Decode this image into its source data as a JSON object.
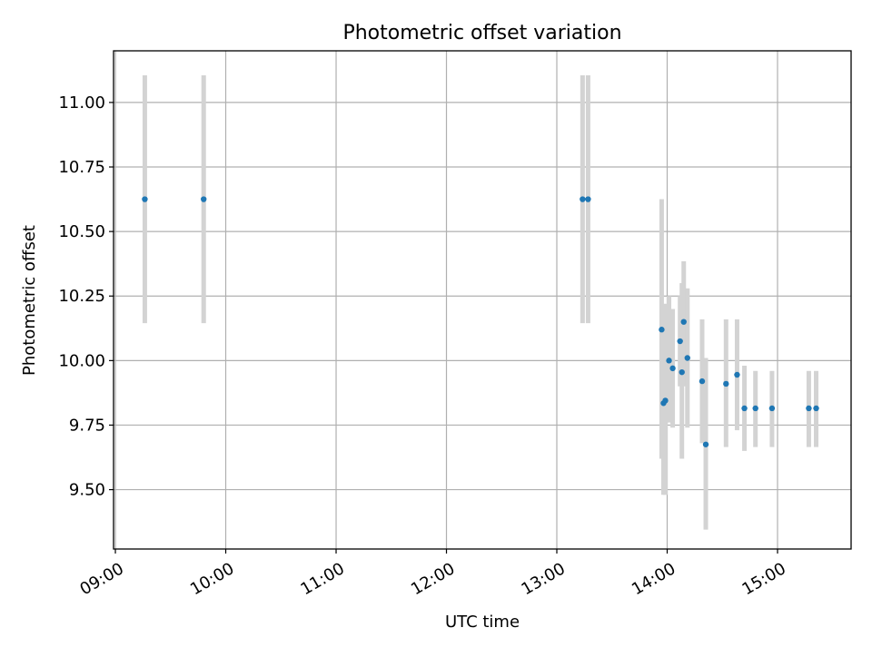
{
  "chart_data": {
    "type": "scatter",
    "title": "Photometric offset variation",
    "xlabel": "UTC time",
    "ylabel": "Photometric offset",
    "x_tick_labels": [
      "09:00",
      "10:00",
      "11:00",
      "12:00",
      "13:00",
      "14:00",
      "15:00"
    ],
    "y_tick_labels": [
      "9.50",
      "9.75",
      "10.00",
      "10.25",
      "10.50",
      "10.75",
      "11.00"
    ],
    "xlim": [
      "08:59",
      "15:40"
    ],
    "ylim": [
      9.27,
      11.2
    ],
    "grid": true,
    "colors": {
      "point": "#1f77b4",
      "errorbar": "#d3d3d3",
      "grid": "#b0b0b0"
    },
    "points": [
      {
        "x": "09:16",
        "y": 10.625,
        "yerr_low": 10.145,
        "yerr_high": 11.105
      },
      {
        "x": "09:48",
        "y": 10.625,
        "yerr_low": 10.145,
        "yerr_high": 11.105
      },
      {
        "x": "13:14",
        "y": 10.625,
        "yerr_low": 10.145,
        "yerr_high": 11.105
      },
      {
        "x": "13:17",
        "y": 10.625,
        "yerr_low": 10.145,
        "yerr_high": 11.105
      },
      {
        "x": "13:57",
        "y": 10.12,
        "yerr_low": 9.62,
        "yerr_high": 10.625
      },
      {
        "x": "13:58",
        "y": 9.835,
        "yerr_low": 9.48,
        "yerr_high": 10.2
      },
      {
        "x": "13:59",
        "y": 9.845,
        "yerr_low": 9.48,
        "yerr_high": 10.22
      },
      {
        "x": "14:01",
        "y": 10.0,
        "yerr_low": 9.76,
        "yerr_high": 10.25
      },
      {
        "x": "14:03",
        "y": 9.97,
        "yerr_low": 9.74,
        "yerr_high": 10.2
      },
      {
        "x": "14:07",
        "y": 10.075,
        "yerr_low": 9.9,
        "yerr_high": 10.25
      },
      {
        "x": "14:08",
        "y": 9.955,
        "yerr_low": 9.62,
        "yerr_high": 10.3
      },
      {
        "x": "14:09",
        "y": 10.15,
        "yerr_low": 9.9,
        "yerr_high": 10.385
      },
      {
        "x": "14:11",
        "y": 10.01,
        "yerr_low": 9.74,
        "yerr_high": 10.28
      },
      {
        "x": "14:19",
        "y": 9.92,
        "yerr_low": 9.68,
        "yerr_high": 10.16
      },
      {
        "x": "14:21",
        "y": 9.675,
        "yerr_low": 9.345,
        "yerr_high": 10.01
      },
      {
        "x": "14:32",
        "y": 9.91,
        "yerr_low": 9.665,
        "yerr_high": 10.16
      },
      {
        "x": "14:38",
        "y": 9.945,
        "yerr_low": 9.73,
        "yerr_high": 10.16
      },
      {
        "x": "14:42",
        "y": 9.815,
        "yerr_low": 9.65,
        "yerr_high": 9.98
      },
      {
        "x": "14:48",
        "y": 9.815,
        "yerr_low": 9.665,
        "yerr_high": 9.96
      },
      {
        "x": "14:57",
        "y": 9.815,
        "yerr_low": 9.665,
        "yerr_high": 9.96
      },
      {
        "x": "15:17",
        "y": 9.815,
        "yerr_low": 9.665,
        "yerr_high": 9.96
      },
      {
        "x": "15:21",
        "y": 9.815,
        "yerr_low": 9.665,
        "yerr_high": 9.96
      }
    ]
  }
}
